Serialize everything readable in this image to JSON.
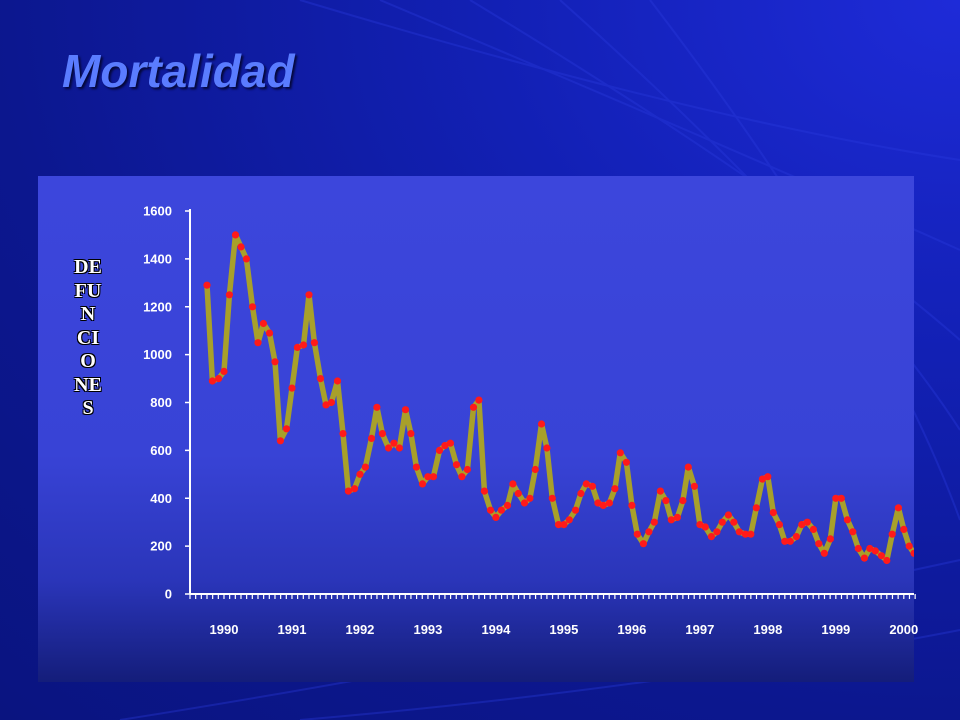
{
  "title": "Mortalidad",
  "colors": {
    "background": "#1220b4",
    "title": "#5a7cff",
    "panel": "#3c46dc",
    "line": "#a8a02a",
    "markers": "#ff1a1a",
    "axis": "#ffffff"
  },
  "chart_data": {
    "type": "line",
    "title": "",
    "xlabel": "",
    "ylabel": "DEFUNCIONES",
    "ylim": [
      0,
      1600
    ],
    "xlim": [
      1990,
      2000.65
    ],
    "y_ticks": [
      0,
      200,
      400,
      600,
      800,
      1000,
      1200,
      1400,
      1600
    ],
    "x_ticks": [
      "1990",
      "1991",
      "1992",
      "1993",
      "1994",
      "1995",
      "1996",
      "1997",
      "1998",
      "1999",
      "2000"
    ],
    "grid": false,
    "legend": "none",
    "series": [
      {
        "x": [
          1990.25,
          1990.33,
          1990.42,
          1990.5,
          1990.58,
          1990.67,
          1990.75,
          1990.83,
          1990.92,
          1991.0,
          1991.08,
          1991.17,
          1991.25,
          1991.33,
          1991.42,
          1991.5,
          1991.58,
          1991.67,
          1991.75,
          1991.83,
          1991.92,
          1992.0,
          1992.08,
          1992.17,
          1992.25,
          1992.33,
          1992.42,
          1992.5,
          1992.58,
          1992.67,
          1992.75,
          1992.83,
          1992.92,
          1993.0,
          1993.08,
          1993.17,
          1993.25,
          1993.33,
          1993.42,
          1993.5,
          1993.58,
          1993.67,
          1993.75,
          1993.83,
          1993.92,
          1994.0,
          1994.08,
          1994.17,
          1994.25,
          1994.33,
          1994.42,
          1994.5,
          1994.58,
          1994.67,
          1994.75,
          1994.83,
          1994.92,
          1995.0,
          1995.08,
          1995.17,
          1995.25,
          1995.33,
          1995.42,
          1995.5,
          1995.58,
          1995.67,
          1995.75,
          1995.83,
          1995.92,
          1996.0,
          1996.08,
          1996.17,
          1996.25,
          1996.33,
          1996.42,
          1996.5,
          1996.58,
          1996.67,
          1996.75,
          1996.83,
          1996.92,
          1997.0,
          1997.08,
          1997.17,
          1997.25,
          1997.33,
          1997.42,
          1997.5,
          1997.58,
          1997.67,
          1997.75,
          1997.83,
          1997.92,
          1998.0,
          1998.08,
          1998.17,
          1998.25,
          1998.33,
          1998.42,
          1998.5,
          1998.58,
          1998.67,
          1998.75,
          1998.83,
          1998.92,
          1999.0,
          1999.08,
          1999.17,
          1999.25,
          1999.33,
          1999.42,
          1999.5,
          1999.58,
          1999.67,
          1999.75,
          1999.83,
          1999.92,
          2000.0,
          2000.08,
          2000.17,
          2000.25,
          2000.33,
          2000.42,
          2000.5,
          2000.58,
          2000.65
        ],
        "values": [
          1290,
          890,
          900,
          930,
          1250,
          1500,
          1450,
          1400,
          1200,
          1050,
          1130,
          1090,
          970,
          640,
          690,
          860,
          1030,
          1040,
          1250,
          1050,
          900,
          790,
          800,
          890,
          670,
          430,
          440,
          500,
          530,
          650,
          780,
          670,
          610,
          630,
          610,
          770,
          670,
          530,
          460,
          490,
          490,
          600,
          620,
          630,
          540,
          490,
          520,
          780,
          810,
          430,
          350,
          320,
          350,
          370,
          460,
          420,
          380,
          400,
          520,
          710,
          610,
          400,
          290,
          290,
          310,
          350,
          420,
          460,
          450,
          380,
          370,
          380,
          440,
          590,
          550,
          370,
          250,
          210,
          260,
          300,
          430,
          390,
          310,
          320,
          390,
          530,
          450,
          290,
          280,
          240,
          260,
          300,
          330,
          300,
          260,
          250,
          250,
          360,
          480,
          490,
          340,
          290,
          220,
          220,
          240,
          290,
          300,
          270,
          210,
          170,
          230,
          400,
          400,
          310,
          260,
          190,
          150,
          190,
          180,
          160,
          140,
          250,
          360,
          270,
          200,
          170
        ]
      }
    ]
  }
}
